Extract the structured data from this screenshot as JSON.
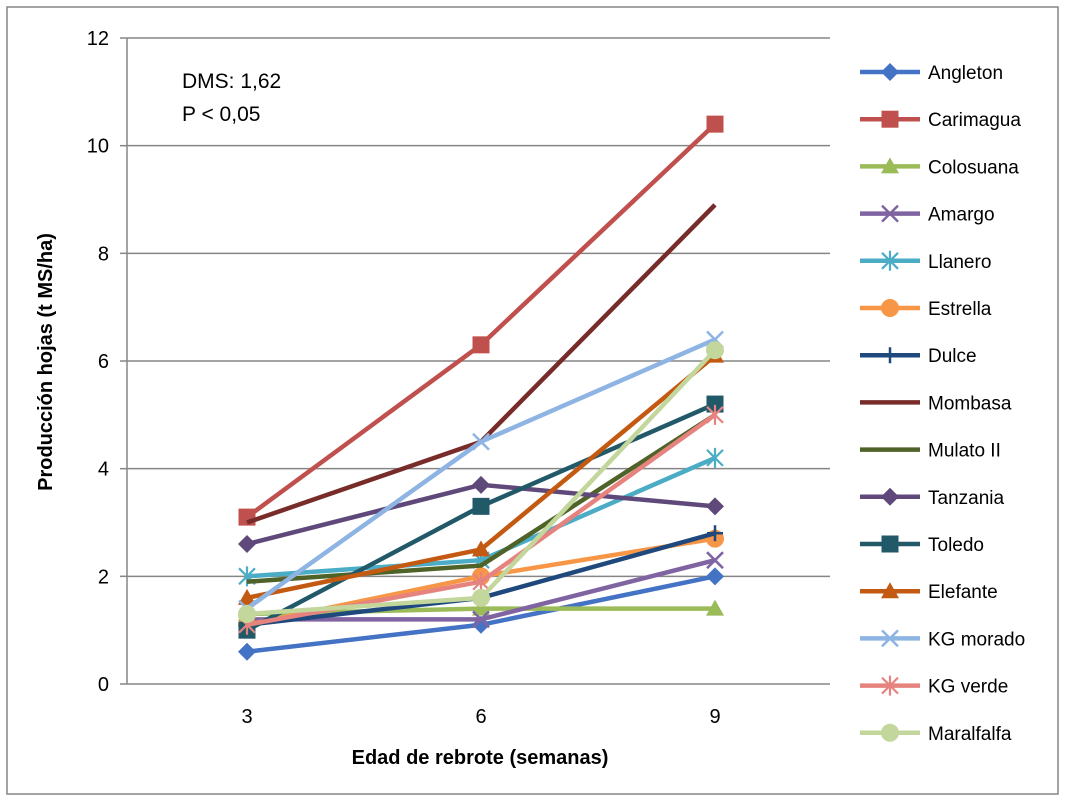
{
  "chart_data": {
    "type": "line",
    "title": "",
    "xlabel": "Edad de rebrote (semanas)",
    "ylabel": "Producción hojas (t MS/ha)",
    "categories": [
      "3",
      "6",
      "9"
    ],
    "ylim": [
      0,
      12
    ],
    "yticks": [
      0,
      2,
      4,
      6,
      8,
      10,
      12
    ],
    "grid": "horizontal",
    "legend_position": "right",
    "annotations": [
      "DMS: 1,62",
      "P < 0,05"
    ],
    "series": [
      {
        "name": "Angleton",
        "values": [
          0.6,
          1.1,
          2.0
        ],
        "color": "#4472C4",
        "marker": "diamond"
      },
      {
        "name": "Carimagua",
        "values": [
          3.1,
          6.3,
          10.4
        ],
        "color": "#C0504D",
        "marker": "square"
      },
      {
        "name": "Colosuana",
        "values": [
          1.3,
          1.4,
          1.4
        ],
        "color": "#9BBB59",
        "marker": "triangle"
      },
      {
        "name": "Amargo",
        "values": [
          1.2,
          1.2,
          2.3
        ],
        "color": "#8064A2",
        "marker": "x"
      },
      {
        "name": "Llanero",
        "values": [
          2.0,
          2.3,
          4.2
        ],
        "color": "#4BACC6",
        "marker": "star"
      },
      {
        "name": "Estrella",
        "values": [
          1.1,
          2.0,
          2.7
        ],
        "color": "#F79646",
        "marker": "circle"
      },
      {
        "name": "Dulce",
        "values": [
          1.1,
          1.6,
          2.8
        ],
        "color": "#1F497D",
        "marker": "plus"
      },
      {
        "name": "Mombasa",
        "values": [
          3.0,
          4.5,
          8.9
        ],
        "color": "#772C2A",
        "marker": "none"
      },
      {
        "name": "Mulato II",
        "values": [
          1.9,
          2.2,
          5.0
        ],
        "color": "#4F6228",
        "marker": "none"
      },
      {
        "name": "Tanzania",
        "values": [
          2.6,
          3.7,
          3.3
        ],
        "color": "#5F497A",
        "marker": "diamond"
      },
      {
        "name": "Toledo",
        "values": [
          1.0,
          3.3,
          5.2
        ],
        "color": "#215968",
        "marker": "square"
      },
      {
        "name": "Elefante",
        "values": [
          1.6,
          2.5,
          6.1
        ],
        "color": "#C45911",
        "marker": "triangle"
      },
      {
        "name": "KG morado",
        "values": [
          1.4,
          4.5,
          6.4
        ],
        "color": "#8EB4E3",
        "marker": "x"
      },
      {
        "name": "KG verde",
        "values": [
          1.1,
          1.9,
          5.0
        ],
        "color": "#E6837F",
        "marker": "star"
      },
      {
        "name": "Maralfalfa",
        "values": [
          1.3,
          1.6,
          6.2
        ],
        "color": "#C3D69B",
        "marker": "circle"
      }
    ]
  }
}
